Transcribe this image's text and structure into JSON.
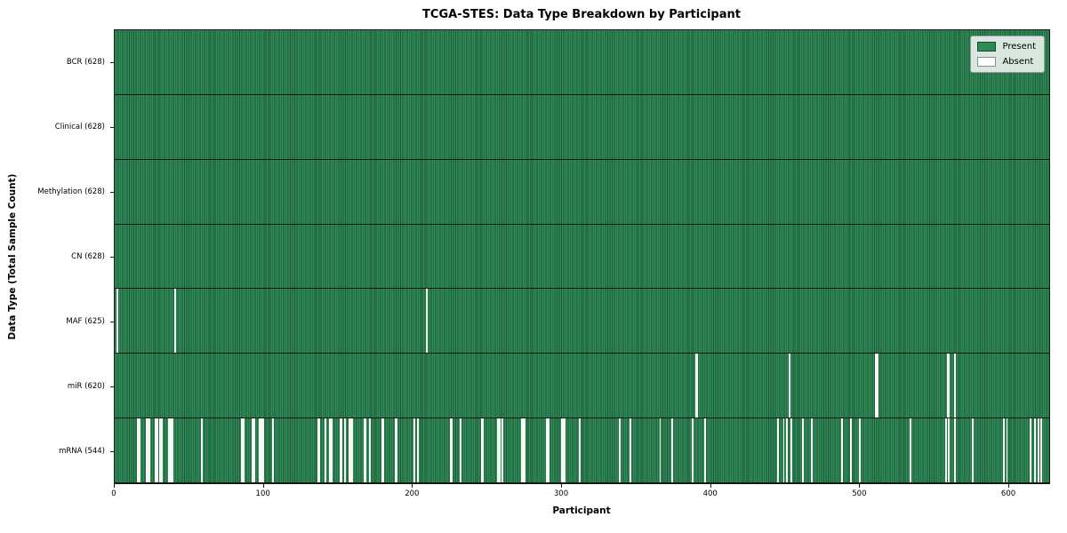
{
  "chart_data": {
    "type": "heatmap",
    "title": "TCGA-STES: Data Type Breakdown by Participant",
    "xlabel": "Participant",
    "ylabel": "Data Type (Total Sample Count)",
    "n_participants": 628,
    "xlim": [
      0,
      628
    ],
    "x_ticks": [
      0,
      100,
      200,
      300,
      400,
      500,
      600
    ],
    "grid": false,
    "legend_position": "upper right",
    "legend": {
      "present_label": "Present",
      "absent_label": "Absent"
    },
    "colors": {
      "present": "#2e8b57",
      "present_edge": "#1e5636",
      "absent": "#f7f7f5"
    },
    "rows": [
      {
        "data_type": "BCR",
        "label": "BCR (628)",
        "present_count": 628,
        "absent_indices": []
      },
      {
        "data_type": "Clinical",
        "label": "Clinical (628)",
        "present_count": 628,
        "absent_indices": []
      },
      {
        "data_type": "Methylation",
        "label": "Methylation (628)",
        "present_count": 628,
        "absent_indices": []
      },
      {
        "data_type": "CN",
        "label": "CN (628)",
        "present_count": 628,
        "absent_indices": []
      },
      {
        "data_type": "MAF",
        "label": "MAF (625)",
        "present_count": 625,
        "absent_indices": [
          1,
          40,
          209
        ]
      },
      {
        "data_type": "miR",
        "label": "miR (620)",
        "present_count": 620,
        "absent_indices": [
          390,
          391,
          453,
          511,
          512,
          559,
          560,
          564
        ]
      },
      {
        "data_type": "mRNA",
        "label": "mRNA (544)",
        "present_count": 544,
        "absent_indices": [
          15,
          16,
          21,
          22,
          23,
          27,
          28,
          30,
          31,
          36,
          37,
          38,
          58,
          85,
          86,
          92,
          93,
          97,
          98,
          99,
          106,
          136,
          137,
          141,
          144,
          145,
          151,
          152,
          154,
          157,
          158,
          159,
          167,
          168,
          171,
          179,
          180,
          188,
          189,
          201,
          203,
          225,
          226,
          232,
          246,
          247,
          257,
          258,
          260,
          273,
          274,
          275,
          290,
          291,
          300,
          301,
          302,
          312,
          339,
          346,
          366,
          374,
          388,
          396,
          445,
          449,
          451,
          454,
          462,
          468,
          488,
          494,
          500,
          534,
          558,
          560,
          564,
          576,
          597,
          599,
          615,
          618,
          620,
          622
        ]
      }
    ]
  }
}
